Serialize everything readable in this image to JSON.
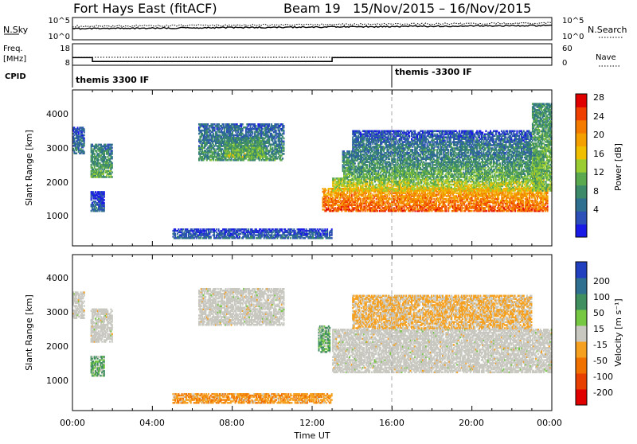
{
  "header": {
    "site": "Fort Hays East (fitACF)",
    "beam": "Beam 19",
    "date_range": "15/Nov/2015 – 16/Nov/2015"
  },
  "top_panels": {
    "nsky_label": "N.Sky",
    "nsky_ticks": [
      "10^5",
      "10^0"
    ],
    "nsearch_label": "N.Search",
    "nsearch_ticks": [
      "10^5",
      "10^0"
    ],
    "freq_label": "Freq.",
    "freq_unit": "[MHz]",
    "freq_ticks": [
      "18",
      "8"
    ],
    "nave_label": "Nave",
    "nave_ticks": [
      "60",
      "0"
    ],
    "cpid_label": "CPID",
    "cpid_segments": [
      {
        "label": "themis 3300 IF",
        "start": "00:00",
        "end": "16:00"
      },
      {
        "label": "themis -3300 IF",
        "start": "16:00",
        "end": "00:00"
      }
    ],
    "freq_steps": [
      {
        "start": 0.0,
        "end": 1.0,
        "mhz": 12
      },
      {
        "start": 1.0,
        "end": 13.0,
        "mhz": 10
      },
      {
        "start": 13.0,
        "end": 24.0,
        "mhz": 12
      }
    ]
  },
  "axes": {
    "ylabel": "Slant Range [km]",
    "yticks": [
      "1000",
      "2000",
      "3000",
      "4000"
    ],
    "xticks": [
      "00:00",
      "04:00",
      "08:00",
      "12:00",
      "16:00",
      "20:00",
      "00:00"
    ],
    "xlabel": "Time UT"
  },
  "power_bar": {
    "label": "Power [dB]",
    "ticks": [
      "4",
      "8",
      "12",
      "16",
      "20",
      "24",
      "28"
    ],
    "colors": [
      "#1a1ae6",
      "#2c4fb8",
      "#2f6f8f",
      "#3c8a6a",
      "#5aa94f",
      "#9acd32",
      "#f0c000",
      "#f3a000",
      "#f57a00",
      "#f04000",
      "#e00000"
    ]
  },
  "velocity_bar": {
    "label": "Velocity [m s⁻¹]",
    "ticks": [
      "200",
      "100",
      "50",
      "15",
      "-15",
      "-50",
      "-100",
      "-200"
    ],
    "colors": [
      "#2040c0",
      "#2f6f8f",
      "#3f8f5f",
      "#76c843",
      "#c8c8c0",
      "#f6a020",
      "#f07000",
      "#e84000",
      "#e00000"
    ]
  },
  "chart_data": [
    {
      "type": "heatmap",
      "title": "Power",
      "xlabel": "Time UT",
      "ylabel": "Slant Range [km]",
      "xlim": [
        0,
        24
      ],
      "ylim": [
        0,
        4600
      ],
      "regions": [
        {
          "t0": 0.0,
          "t1": 0.6,
          "r0": 2700,
          "r1": 3500,
          "level": 8
        },
        {
          "t0": 0.9,
          "t1": 2.0,
          "r0": 2000,
          "r1": 3000,
          "level": 12
        },
        {
          "t0": 0.9,
          "t1": 1.6,
          "r0": 1000,
          "r1": 1600,
          "level": 6
        },
        {
          "t0": 6.3,
          "t1": 10.6,
          "r0": 2500,
          "r1": 3600,
          "level": 10
        },
        {
          "t0": 7.6,
          "t1": 9.6,
          "r0": 2600,
          "r1": 3200,
          "level": 14
        },
        {
          "t0": 12.5,
          "t1": 23.8,
          "r0": 1000,
          "r1": 1700,
          "level": 26
        },
        {
          "t0": 13.0,
          "t1": 23.6,
          "r0": 1600,
          "r1": 2000,
          "level": 18
        },
        {
          "t0": 13.5,
          "t1": 23.6,
          "r0": 2000,
          "r1": 2800,
          "level": 12
        },
        {
          "t0": 14.0,
          "t1": 23.0,
          "r0": 2800,
          "r1": 3400,
          "level": 8
        },
        {
          "t0": 23.0,
          "t1": 24.0,
          "r0": 1600,
          "r1": 4200,
          "level": 14
        },
        {
          "t0": 5.0,
          "t1": 13.0,
          "r0": 200,
          "r1": 500,
          "level": 6
        }
      ]
    },
    {
      "type": "heatmap",
      "title": "Velocity",
      "xlabel": "Time UT",
      "ylabel": "Slant Range [km]",
      "xlim": [
        0,
        24
      ],
      "ylim": [
        0,
        4600
      ],
      "regions": [
        {
          "t0": 0.0,
          "t1": 0.6,
          "r0": 2700,
          "r1": 3500,
          "v": 0
        },
        {
          "t0": 0.9,
          "t1": 2.0,
          "r0": 2000,
          "r1": 3000,
          "v": 0
        },
        {
          "t0": 0.9,
          "t1": 1.6,
          "r0": 1000,
          "r1": 1600,
          "v": 30
        },
        {
          "t0": 6.3,
          "t1": 10.6,
          "r0": 2500,
          "r1": 3600,
          "v": 0
        },
        {
          "t0": 12.3,
          "t1": 12.9,
          "r0": 1700,
          "r1": 2500,
          "v": 30
        },
        {
          "t0": 13.0,
          "t1": 24.0,
          "r0": 1100,
          "r1": 2400,
          "v": 0
        },
        {
          "t0": 14.0,
          "t1": 23.0,
          "r0": 2400,
          "r1": 3400,
          "v": -20
        },
        {
          "t0": 5.0,
          "t1": 13.0,
          "r0": 200,
          "r1": 500,
          "v": -40
        }
      ]
    }
  ]
}
